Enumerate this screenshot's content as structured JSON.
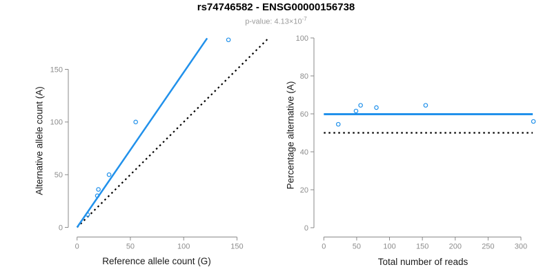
{
  "title": "rs74746582 - ENSG00000156738",
  "subtitle": {
    "label": "p-value:",
    "value_mantissa": "4.13",
    "multiply_sign": "×",
    "value_base": "10",
    "value_exponent": "-7"
  },
  "colors": {
    "accent_blue": "#2191EB",
    "reference_black": "#000000",
    "axis_gray": "#898989",
    "tick_label_gray": "#8c8c8c",
    "title_black": "#000000",
    "subtitle_gray": "#9b9b9b"
  },
  "chart_data": [
    {
      "type": "scatter",
      "name": "allele-counts-panel",
      "xlabel": "Reference allele count (G)",
      "ylabel": "Alternative allele count (A)",
      "xlim": [
        0,
        183
      ],
      "ylim": [
        0,
        183
      ],
      "xticks": [
        0,
        50,
        100,
        150
      ],
      "yticks": [
        0,
        50,
        100,
        150
      ],
      "grid": false,
      "points": [
        [
          10,
          12
        ],
        [
          19,
          30
        ],
        [
          20,
          36
        ],
        [
          30,
          50
        ],
        [
          55,
          100
        ],
        [
          142,
          178
        ]
      ],
      "fit_line": {
        "style": "solid",
        "from": [
          0,
          0
        ],
        "to": [
          122,
          179.5
        ]
      },
      "reference_line": {
        "style": "dotted",
        "from": [
          0,
          0
        ],
        "to": [
          179.5,
          179.5
        ]
      }
    },
    {
      "type": "scatter",
      "name": "percentage-vs-reads-panel",
      "xlabel": "Total number of reads",
      "ylabel": "Percentage alternative (A)",
      "xlim": [
        0,
        320
      ],
      "ylim": [
        0,
        100
      ],
      "xticks": [
        0,
        50,
        100,
        150,
        200,
        250,
        300
      ],
      "yticks": [
        0,
        20,
        40,
        60,
        80,
        100
      ],
      "grid": false,
      "points": [
        [
          22,
          54.5
        ],
        [
          49,
          61.5
        ],
        [
          56,
          64.5
        ],
        [
          80,
          63.3
        ],
        [
          155,
          64.5
        ],
        [
          319,
          56
        ]
      ],
      "fit_line": {
        "style": "solid",
        "y": 59.8,
        "x_range": [
          0,
          318
        ]
      },
      "reference_line": {
        "style": "dotted",
        "y": 50,
        "x_range": [
          0,
          318
        ]
      }
    }
  ]
}
